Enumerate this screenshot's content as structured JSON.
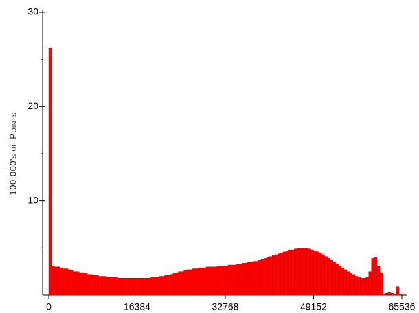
{
  "chart_data": {
    "type": "histogram",
    "y_label": "100,000's of Points",
    "color": "#ff0000",
    "bins": [
      0,
      512,
      1024,
      1536,
      2048,
      2560,
      3072,
      3584,
      4096,
      4608,
      5120,
      5632,
      6144,
      6656,
      7168,
      7680,
      8192,
      8704,
      9216,
      9728,
      10240,
      10752,
      11264,
      11776,
      12288,
      12800,
      13312,
      13824,
      14336,
      14848,
      15360,
      15872,
      16384,
      16896,
      17408,
      17920,
      18432,
      18944,
      19456,
      19968,
      20480,
      20992,
      21504,
      22016,
      22528,
      23040,
      23552,
      24064,
      24576,
      25088,
      25600,
      26112,
      26624,
      27136,
      27648,
      28160,
      28672,
      29184,
      29696,
      30208,
      30720,
      31232,
      31744,
      32256,
      32768,
      33280,
      33792,
      34304,
      34816,
      35328,
      35840,
      36352,
      36864,
      37376,
      37888,
      38400,
      38912,
      39424,
      39936,
      40448,
      40960,
      41472,
      41984,
      42496,
      43008,
      43520,
      44032,
      44544,
      45056,
      45568,
      46080,
      46592,
      47104,
      47616,
      48128,
      48640,
      49152,
      49664,
      50176,
      50688,
      51200,
      51712,
      52224,
      52736,
      53248,
      53760,
      54272,
      54784,
      55296,
      55808,
      56320,
      56832,
      57344,
      57856,
      58368,
      58880,
      59392,
      59904,
      60416,
      60928,
      61440,
      61952,
      62464,
      62976,
      63488,
      64000,
      64512,
      65024,
      65536
    ],
    "values": [
      26.2,
      3.1,
      3.0,
      3.0,
      2.9,
      2.8,
      2.8,
      2.7,
      2.6,
      2.5,
      2.5,
      2.4,
      2.4,
      2.3,
      2.2,
      2.2,
      2.1,
      2.1,
      2.0,
      2.0,
      2.0,
      1.9,
      1.9,
      1.9,
      1.9,
      1.8,
      1.8,
      1.8,
      1.8,
      1.8,
      1.8,
      1.8,
      1.8,
      1.8,
      1.8,
      1.8,
      1.8,
      1.9,
      1.9,
      1.9,
      2.0,
      2.0,
      2.1,
      2.1,
      2.2,
      2.3,
      2.4,
      2.5,
      2.5,
      2.6,
      2.7,
      2.7,
      2.8,
      2.8,
      2.9,
      2.9,
      2.9,
      3.0,
      3.0,
      3.0,
      3.0,
      3.1,
      3.1,
      3.1,
      3.1,
      3.2,
      3.2,
      3.2,
      3.3,
      3.3,
      3.4,
      3.4,
      3.5,
      3.5,
      3.6,
      3.6,
      3.7,
      3.8,
      3.9,
      4.0,
      4.1,
      4.2,
      4.3,
      4.4,
      4.5,
      4.6,
      4.7,
      4.8,
      4.8,
      4.9,
      5.0,
      5.0,
      5.0,
      5.0,
      4.9,
      4.8,
      4.7,
      4.6,
      4.5,
      4.3,
      4.1,
      3.9,
      3.7,
      3.5,
      3.3,
      3.1,
      2.9,
      2.7,
      2.5,
      2.3,
      2.2,
      2.0,
      1.9,
      1.8,
      1.8,
      1.9,
      2.5,
      3.9,
      4.0,
      3.1,
      2.4,
      0.1,
      0.2,
      0.3,
      0.2,
      0.1,
      0.9,
      0.1
    ],
    "xlim": [
      -1148,
      66180
    ],
    "xticks": [
      0,
      16384,
      32768,
      49152,
      65536
    ],
    "ylim": [
      0,
      30
    ],
    "yticks": [
      10,
      20,
      30
    ],
    "yminor_ticks": [
      5,
      15,
      25
    ]
  }
}
